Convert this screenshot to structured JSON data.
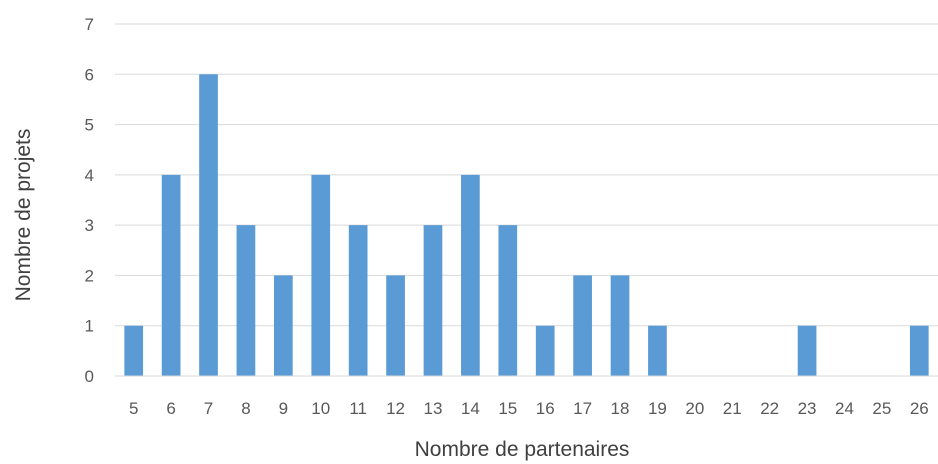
{
  "chart_data": {
    "type": "bar",
    "title": "",
    "xlabel": "Nombre de partenaires",
    "ylabel": "Nombre de projets",
    "categories": [
      "5",
      "6",
      "7",
      "8",
      "9",
      "10",
      "11",
      "12",
      "13",
      "14",
      "15",
      "16",
      "17",
      "18",
      "19",
      "20",
      "21",
      "22",
      "23",
      "24",
      "25",
      "26"
    ],
    "values": [
      1,
      4,
      6,
      3,
      2,
      4,
      3,
      2,
      3,
      4,
      3,
      1,
      2,
      2,
      1,
      0,
      0,
      0,
      1,
      0,
      0,
      1
    ],
    "ylim": [
      0,
      7
    ],
    "yticks": [
      0,
      1,
      2,
      3,
      4,
      5,
      6,
      7
    ],
    "grid": true,
    "legend": "none",
    "bar_color": "#5b9bd5",
    "grid_color": "#d9d9d9"
  }
}
